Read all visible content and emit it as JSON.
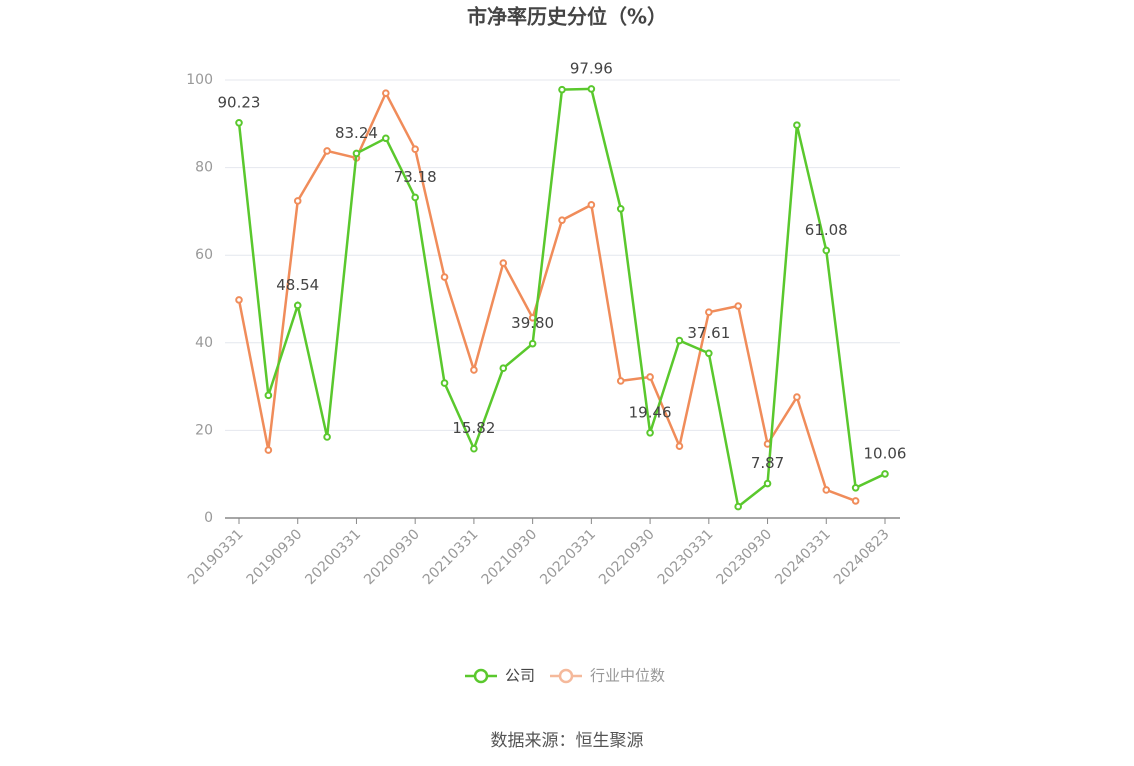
{
  "chart_data": {
    "type": "line",
    "title": "市净率历史分位（%）",
    "categories": [
      "20190331",
      null,
      "20190930",
      null,
      "20200331",
      null,
      "20200930",
      null,
      "20210331",
      null,
      "20210930",
      null,
      "20220331",
      null,
      "20220930",
      null,
      "20230331",
      null,
      "20230930",
      null,
      "20240331",
      null,
      "20240823"
    ],
    "series": [
      {
        "name": "公司",
        "color": "#5ac82d",
        "values": [
          90.23,
          28.0,
          48.54,
          18.5,
          83.24,
          86.7,
          73.18,
          30.8,
          15.82,
          34.2,
          39.8,
          97.8,
          97.96,
          70.6,
          19.46,
          40.5,
          37.61,
          2.6,
          7.87,
          89.7,
          61.08,
          6.9,
          10.06
        ],
        "value_labels": [
          "90.23",
          null,
          "48.54",
          null,
          "83.24",
          null,
          "73.18",
          null,
          "15.82",
          null,
          "39.80",
          null,
          "97.96",
          null,
          "19.46",
          null,
          "37.61",
          null,
          "7.87",
          null,
          "61.08",
          null,
          "10.06"
        ]
      },
      {
        "name": "行业中位数",
        "color": "#f08c5a",
        "values": [
          49.8,
          15.5,
          72.4,
          83.8,
          82.2,
          97.0,
          84.2,
          55.0,
          33.8,
          58.2,
          45.7,
          68.0,
          71.5,
          31.3,
          32.2,
          16.4,
          47.0,
          48.4,
          16.9,
          27.6,
          6.4,
          3.9,
          null
        ]
      }
    ],
    "ylim": [
      0,
      100
    ],
    "yticks": [
      0,
      20,
      40,
      60,
      80,
      100
    ],
    "grid": true,
    "source": "数据来源：恒生聚源"
  }
}
